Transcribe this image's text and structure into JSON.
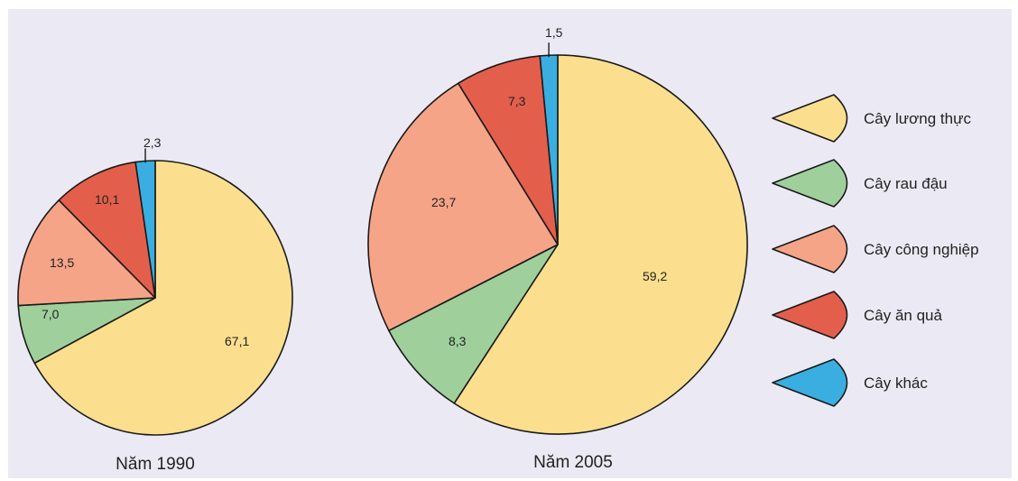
{
  "chart_data": {
    "type": "pie",
    "legend_position": "right",
    "categories": [
      "Cây lương thực",
      "Cây rau đậu",
      "Cây công nghiệp",
      "Cây ăn quả",
      "Cây khác"
    ],
    "colors": [
      "#fbdf8f",
      "#9fd09c",
      "#f5a487",
      "#e35f4c",
      "#3aaee0"
    ],
    "charts": [
      {
        "year_label": "Năm 1990",
        "values": [
          67.1,
          7.0,
          13.5,
          10.1,
          2.3
        ],
        "value_labels": [
          "67,1",
          "7,0",
          "13,5",
          "10,1",
          "2,3"
        ]
      },
      {
        "year_label": "Năm 2005",
        "values": [
          59.2,
          8.3,
          23.7,
          7.3,
          1.5
        ],
        "value_labels": [
          "59,2",
          "8,3",
          "23,7",
          "7,3",
          "1,5"
        ]
      }
    ]
  }
}
